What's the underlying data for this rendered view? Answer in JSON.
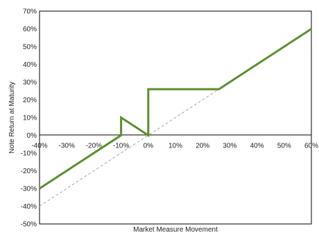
{
  "chart_data": {
    "type": "line",
    "xlabel": "Market Measure Movement",
    "ylabel": "Note Return at Maturity",
    "xlim": [
      -40,
      60
    ],
    "ylim": [
      -50,
      70
    ],
    "grid": false,
    "x_ticks": [
      "-40%",
      "-30%",
      "-20%",
      "-10%",
      "0%",
      "10%",
      "20%",
      "30%",
      "40%",
      "50%",
      "60%"
    ],
    "y_ticks": [
      "70%",
      "60%",
      "50%",
      "40%",
      "30%",
      "20%",
      "10%",
      "0%",
      "-10%",
      "-20%",
      "-30%",
      "-40%",
      "-50%"
    ],
    "series": [
      {
        "role": "note-return",
        "style": "solid",
        "color": "#5b8e2e",
        "points": [
          [
            -40,
            -30
          ],
          [
            -10,
            0
          ],
          [
            -10,
            10
          ],
          [
            0,
            0
          ],
          [
            0,
            26
          ],
          [
            26,
            26
          ],
          [
            60,
            60
          ]
        ]
      },
      {
        "role": "market-measure",
        "style": "dashed",
        "color": "#a6a6a6",
        "points": [
          [
            -40,
            -40
          ],
          [
            60,
            60
          ]
        ]
      }
    ]
  }
}
